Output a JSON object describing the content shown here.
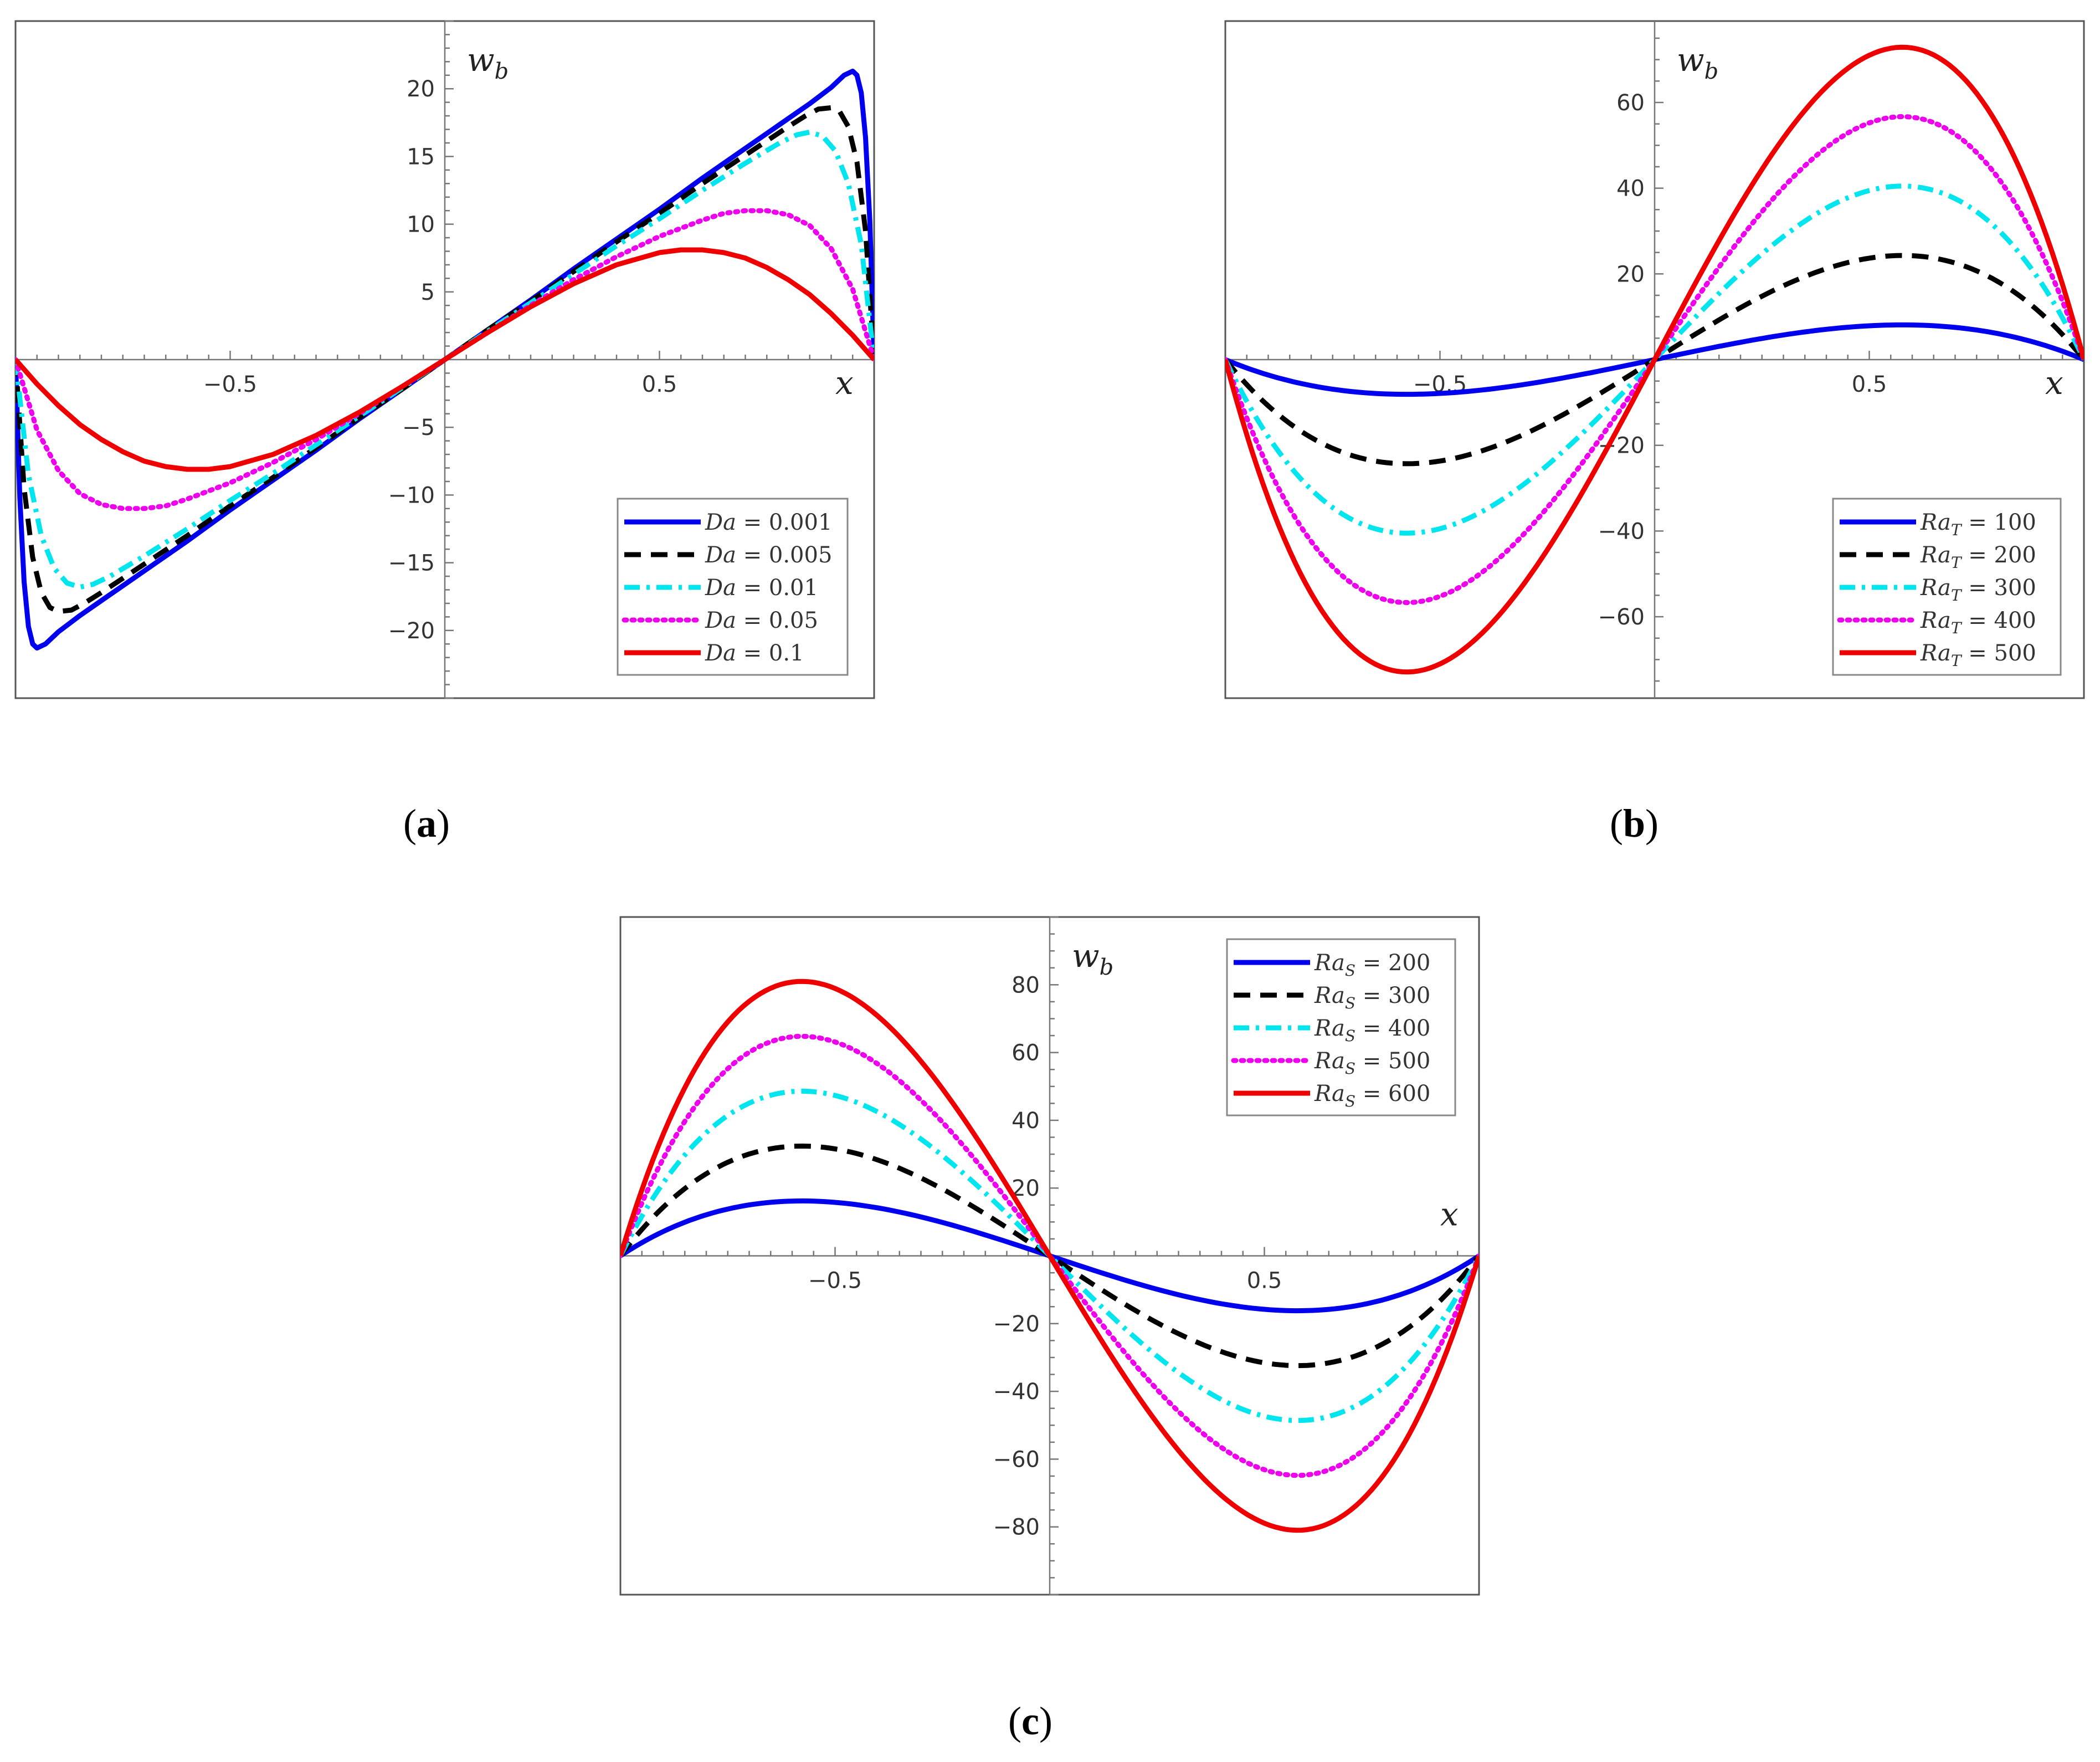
{
  "figure": {
    "panels": [
      {
        "caption_open": "(",
        "caption_letter": "a",
        "caption_close": ")"
      },
      {
        "caption_open": "(",
        "caption_letter": "b",
        "caption_close": ")"
      },
      {
        "caption_open": "(",
        "caption_letter": "c",
        "caption_close": ")"
      }
    ]
  },
  "chart_data": [
    {
      "type": "line",
      "panel": "a",
      "xlabel": "x",
      "ylabel": "w_b",
      "xlim": [
        -1,
        1
      ],
      "ylim": [
        -25,
        25
      ],
      "x_ticks": [
        "−0.5",
        "0.5"
      ],
      "y_ticks": [
        "−20",
        "−15",
        "−10",
        "−5",
        "5",
        "10",
        "15",
        "20"
      ],
      "legend_position": "bottom-right",
      "legend_parameter": "Da",
      "series": [
        {
          "name": "Da = 0.001",
          "value": "0.001",
          "color": "#0000ee",
          "dash": "solid",
          "points": [
            [
              -1,
              0
            ],
            [
              -0.99,
              -10.2
            ],
            [
              -0.98,
              -16.4
            ],
            [
              -0.97,
              -19.7
            ],
            [
              -0.96,
              -21.0
            ],
            [
              -0.95,
              -21.3
            ],
            [
              -0.93,
              -21.0
            ],
            [
              -0.9,
              -20.1
            ],
            [
              -0.85,
              -18.9
            ],
            [
              -0.8,
              -17.8
            ],
            [
              -0.7,
              -15.6
            ],
            [
              -0.6,
              -13.4
            ],
            [
              -0.5,
              -11.1
            ],
            [
              -0.4,
              -8.9
            ],
            [
              -0.3,
              -6.7
            ],
            [
              -0.2,
              -4.4
            ],
            [
              -0.1,
              -2.2
            ],
            [
              0,
              0
            ],
            [
              0.1,
              2.2
            ],
            [
              0.2,
              4.4
            ],
            [
              0.3,
              6.7
            ],
            [
              0.4,
              8.9
            ],
            [
              0.5,
              11.1
            ],
            [
              0.6,
              13.4
            ],
            [
              0.7,
              15.6
            ],
            [
              0.8,
              17.8
            ],
            [
              0.85,
              18.9
            ],
            [
              0.9,
              20.1
            ],
            [
              0.93,
              21.0
            ],
            [
              0.95,
              21.3
            ],
            [
              0.96,
              21.0
            ],
            [
              0.97,
              19.7
            ],
            [
              0.98,
              16.4
            ],
            [
              0.99,
              10.2
            ],
            [
              1,
              0
            ]
          ]
        },
        {
          "name": "Da = 0.005",
          "value": "0.005",
          "color": "#000000",
          "dash": "dashed",
          "points": [
            [
              -1,
              0
            ],
            [
              -0.98,
              -9.5
            ],
            [
              -0.96,
              -14.6
            ],
            [
              -0.94,
              -17.2
            ],
            [
              -0.92,
              -18.3
            ],
            [
              -0.9,
              -18.6
            ],
            [
              -0.87,
              -18.5
            ],
            [
              -0.84,
              -18.0
            ],
            [
              -0.8,
              -17.2
            ],
            [
              -0.7,
              -15.1
            ],
            [
              -0.6,
              -13.0
            ],
            [
              -0.5,
              -10.8
            ],
            [
              -0.4,
              -8.7
            ],
            [
              -0.3,
              -6.5
            ],
            [
              -0.2,
              -4.3
            ],
            [
              -0.1,
              -2.2
            ],
            [
              0,
              0
            ],
            [
              0.1,
              2.2
            ],
            [
              0.2,
              4.3
            ],
            [
              0.3,
              6.5
            ],
            [
              0.4,
              8.7
            ],
            [
              0.5,
              10.8
            ],
            [
              0.6,
              13.0
            ],
            [
              0.7,
              15.1
            ],
            [
              0.8,
              17.2
            ],
            [
              0.84,
              18.0
            ],
            [
              0.87,
              18.5
            ],
            [
              0.9,
              18.6
            ],
            [
              0.92,
              18.3
            ],
            [
              0.94,
              17.2
            ],
            [
              0.96,
              14.6
            ],
            [
              0.98,
              9.5
            ],
            [
              1,
              0
            ]
          ]
        },
        {
          "name": "Da = 0.01",
          "value": "0.01",
          "color": "#00e5ee",
          "dash": "dashdot",
          "points": [
            [
              -1,
              0
            ],
            [
              -0.97,
              -8.5
            ],
            [
              -0.94,
              -13.0
            ],
            [
              -0.91,
              -15.4
            ],
            [
              -0.88,
              -16.5
            ],
            [
              -0.85,
              -16.8
            ],
            [
              -0.82,
              -16.6
            ],
            [
              -0.78,
              -16.0
            ],
            [
              -0.7,
              -14.5
            ],
            [
              -0.6,
              -12.5
            ],
            [
              -0.5,
              -10.4
            ],
            [
              -0.4,
              -8.4
            ],
            [
              -0.3,
              -6.3
            ],
            [
              -0.2,
              -4.2
            ],
            [
              -0.1,
              -2.1
            ],
            [
              0,
              0
            ],
            [
              0.1,
              2.1
            ],
            [
              0.2,
              4.2
            ],
            [
              0.3,
              6.3
            ],
            [
              0.4,
              8.4
            ],
            [
              0.5,
              10.4
            ],
            [
              0.6,
              12.5
            ],
            [
              0.7,
              14.5
            ],
            [
              0.78,
              16.0
            ],
            [
              0.82,
              16.6
            ],
            [
              0.85,
              16.8
            ],
            [
              0.88,
              16.5
            ],
            [
              0.91,
              15.4
            ],
            [
              0.94,
              13.0
            ],
            [
              0.97,
              8.5
            ],
            [
              1,
              0
            ]
          ]
        },
        {
          "name": "Da = 0.05",
          "value": "0.05",
          "color": "#ee00ee",
          "dash": "dotted",
          "points": [
            [
              -1,
              0
            ],
            [
              -0.95,
              -5.2
            ],
            [
              -0.9,
              -8.2
            ],
            [
              -0.85,
              -9.9
            ],
            [
              -0.8,
              -10.7
            ],
            [
              -0.75,
              -11.0
            ],
            [
              -0.7,
              -11.0
            ],
            [
              -0.65,
              -10.8
            ],
            [
              -0.6,
              -10.3
            ],
            [
              -0.5,
              -9.1
            ],
            [
              -0.4,
              -7.6
            ],
            [
              -0.3,
              -5.9
            ],
            [
              -0.2,
              -4.0
            ],
            [
              -0.1,
              -2.0
            ],
            [
              0,
              0
            ],
            [
              0.1,
              2.0
            ],
            [
              0.2,
              4.0
            ],
            [
              0.3,
              5.9
            ],
            [
              0.4,
              7.6
            ],
            [
              0.5,
              9.1
            ],
            [
              0.6,
              10.3
            ],
            [
              0.65,
              10.8
            ],
            [
              0.7,
              11.0
            ],
            [
              0.75,
              11.0
            ],
            [
              0.8,
              10.7
            ],
            [
              0.85,
              9.9
            ],
            [
              0.9,
              8.2
            ],
            [
              0.95,
              5.2
            ],
            [
              1,
              0
            ]
          ]
        },
        {
          "name": "Da = 0.1",
          "value": "0.1",
          "color": "#ee0000",
          "dash": "solid",
          "points": [
            [
              -1,
              0
            ],
            [
              -0.95,
              -1.8
            ],
            [
              -0.9,
              -3.4
            ],
            [
              -0.85,
              -4.8
            ],
            [
              -0.8,
              -5.9
            ],
            [
              -0.75,
              -6.8
            ],
            [
              -0.7,
              -7.5
            ],
            [
              -0.65,
              -7.9
            ],
            [
              -0.6,
              -8.1
            ],
            [
              -0.55,
              -8.1
            ],
            [
              -0.5,
              -7.9
            ],
            [
              -0.4,
              -7.0
            ],
            [
              -0.3,
              -5.6
            ],
            [
              -0.2,
              -3.9
            ],
            [
              -0.1,
              -2.0
            ],
            [
              0,
              0
            ],
            [
              0.1,
              2.0
            ],
            [
              0.2,
              3.9
            ],
            [
              0.3,
              5.6
            ],
            [
              0.4,
              7.0
            ],
            [
              0.5,
              7.9
            ],
            [
              0.55,
              8.1
            ],
            [
              0.6,
              8.1
            ],
            [
              0.65,
              7.9
            ],
            [
              0.7,
              7.5
            ],
            [
              0.75,
              6.8
            ],
            [
              0.8,
              5.9
            ],
            [
              0.85,
              4.8
            ],
            [
              0.9,
              3.4
            ],
            [
              0.95,
              1.8
            ],
            [
              1,
              0
            ]
          ]
        }
      ]
    },
    {
      "type": "line",
      "panel": "b",
      "xlabel": "x",
      "ylabel": "w_b",
      "xlim": [
        -1,
        1
      ],
      "ylim": [
        -79,
        79
      ],
      "x_ticks": [
        "−0.5",
        "0.5"
      ],
      "y_ticks": [
        "−60",
        "−40",
        "−20",
        "20",
        "40",
        "60"
      ],
      "legend_position": "bottom-right",
      "legend_parameter": "Ra_T",
      "series": [
        {
          "name": "Ra_T = 100",
          "value": "100",
          "color": "#0000ee",
          "dash": "solid",
          "amplitude": 8.1
        },
        {
          "name": "Ra_T = 200",
          "value": "200",
          "color": "#000000",
          "dash": "dashed",
          "amplitude": 24.3
        },
        {
          "name": "Ra_T = 300",
          "value": "300",
          "color": "#00e5ee",
          "dash": "dashdot",
          "amplitude": 40.5
        },
        {
          "name": "Ra_T = 400",
          "value": "400",
          "color": "#ee00ee",
          "dash": "dotted",
          "amplitude": 56.7
        },
        {
          "name": "Ra_T = 500",
          "value": "500",
          "color": "#ee0000",
          "dash": "solid",
          "amplitude": 72.9
        }
      ],
      "profile_note": "w_b(x) = amplitude * 2.598 * x * (1 - x^2); extremum at x = ±0.577"
    },
    {
      "type": "line",
      "panel": "c",
      "xlabel": "x",
      "ylabel": "w_b",
      "xlim": [
        -1,
        1
      ],
      "ylim": [
        -100,
        100
      ],
      "x_ticks": [
        "−0.5",
        "0.5"
      ],
      "y_ticks": [
        "−80",
        "−60",
        "−40",
        "−20",
        "20",
        "40",
        "60",
        "80"
      ],
      "legend_position": "top-right",
      "legend_parameter": "Ra_S",
      "series": [
        {
          "name": "Ra_S = 200",
          "value": "200",
          "color": "#0000ee",
          "dash": "solid",
          "amplitude": -16.2
        },
        {
          "name": "Ra_S = 300",
          "value": "300",
          "color": "#000000",
          "dash": "dashed",
          "amplitude": -32.4
        },
        {
          "name": "Ra_S = 400",
          "value": "400",
          "color": "#00e5ee",
          "dash": "dashdot",
          "amplitude": -48.6
        },
        {
          "name": "Ra_S = 500",
          "value": "500",
          "color": "#ee00ee",
          "dash": "dotted",
          "amplitude": -64.8
        },
        {
          "name": "Ra_S = 600",
          "value": "600",
          "color": "#ee0000",
          "dash": "solid",
          "amplitude": -81.0
        }
      ],
      "profile_note": "w_b(x) = amplitude * 2.598 * x * (1 - x^2); extremum at x = ±0.577"
    }
  ]
}
